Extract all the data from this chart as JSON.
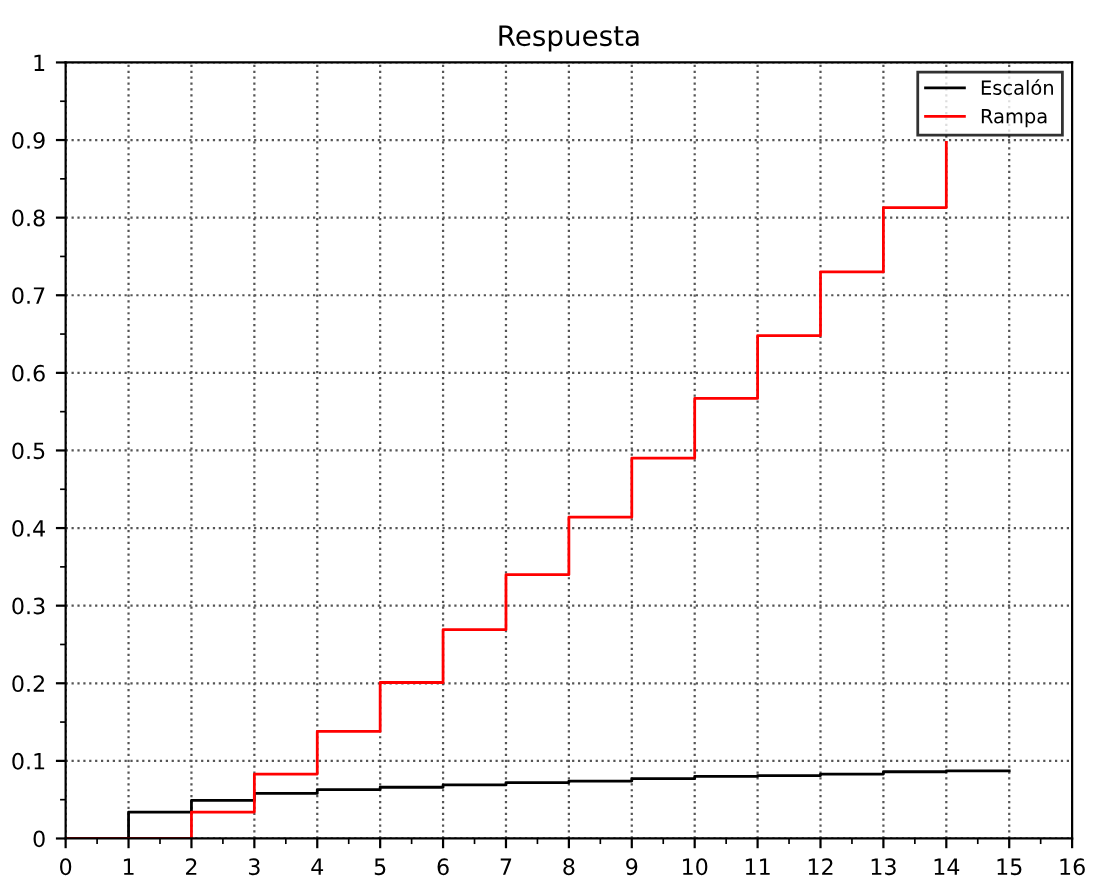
{
  "chart_data": {
    "type": "step",
    "title": "Respuesta",
    "x": [
      0,
      1,
      2,
      3,
      4,
      5,
      6,
      7,
      8,
      9,
      10,
      11,
      12,
      13,
      14,
      15
    ],
    "series": [
      {
        "name": "Escalón",
        "color": "#000000",
        "values": [
          0,
          0.034,
          0.049,
          0.058,
          0.063,
          0.066,
          0.069,
          0.072,
          0.074,
          0.077,
          0.08,
          0.081,
          0.083,
          0.086,
          0.087,
          0.087
        ]
      },
      {
        "name": "Rampa",
        "color": "#ff0000",
        "x": [
          0,
          1,
          2,
          3,
          4,
          5,
          6,
          7,
          8,
          9,
          10,
          11,
          12,
          13,
          14
        ],
        "values": [
          0,
          0,
          0.034,
          0.083,
          0.138,
          0.201,
          0.269,
          0.34,
          0.414,
          0.49,
          0.567,
          0.648,
          0.73,
          0.813,
          0.897
        ]
      }
    ],
    "xlim": [
      0,
      16
    ],
    "xticks": [
      0,
      1,
      2,
      3,
      4,
      5,
      6,
      7,
      8,
      9,
      10,
      11,
      12,
      13,
      14,
      15,
      16
    ],
    "ylim": [
      0,
      1
    ],
    "yticks": [
      0,
      0.1,
      0.2,
      0.3,
      0.4,
      0.5,
      0.6,
      0.7,
      0.8,
      0.9,
      1
    ],
    "grid": true,
    "legend": "top right",
    "line_style": "solid"
  }
}
